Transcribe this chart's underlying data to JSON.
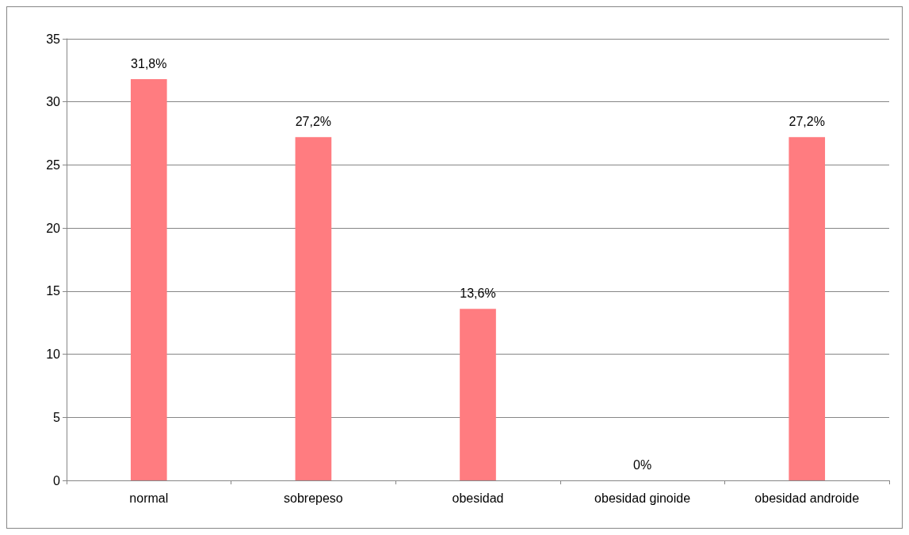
{
  "chart_data": {
    "type": "bar",
    "categories": [
      "normal",
      "sobrepeso",
      "obesidad",
      "obesidad ginoide",
      "obesidad androide"
    ],
    "values": [
      31.8,
      27.2,
      13.6,
      0,
      27.2
    ],
    "value_labels": [
      "31,8%",
      "27,2%",
      "13,6%",
      "0%",
      "27,2%"
    ],
    "color": "#ff7c80",
    "ylim": [
      0,
      35
    ],
    "yticks": [
      0,
      5,
      10,
      15,
      20,
      25,
      30,
      35
    ],
    "grid": "y"
  }
}
